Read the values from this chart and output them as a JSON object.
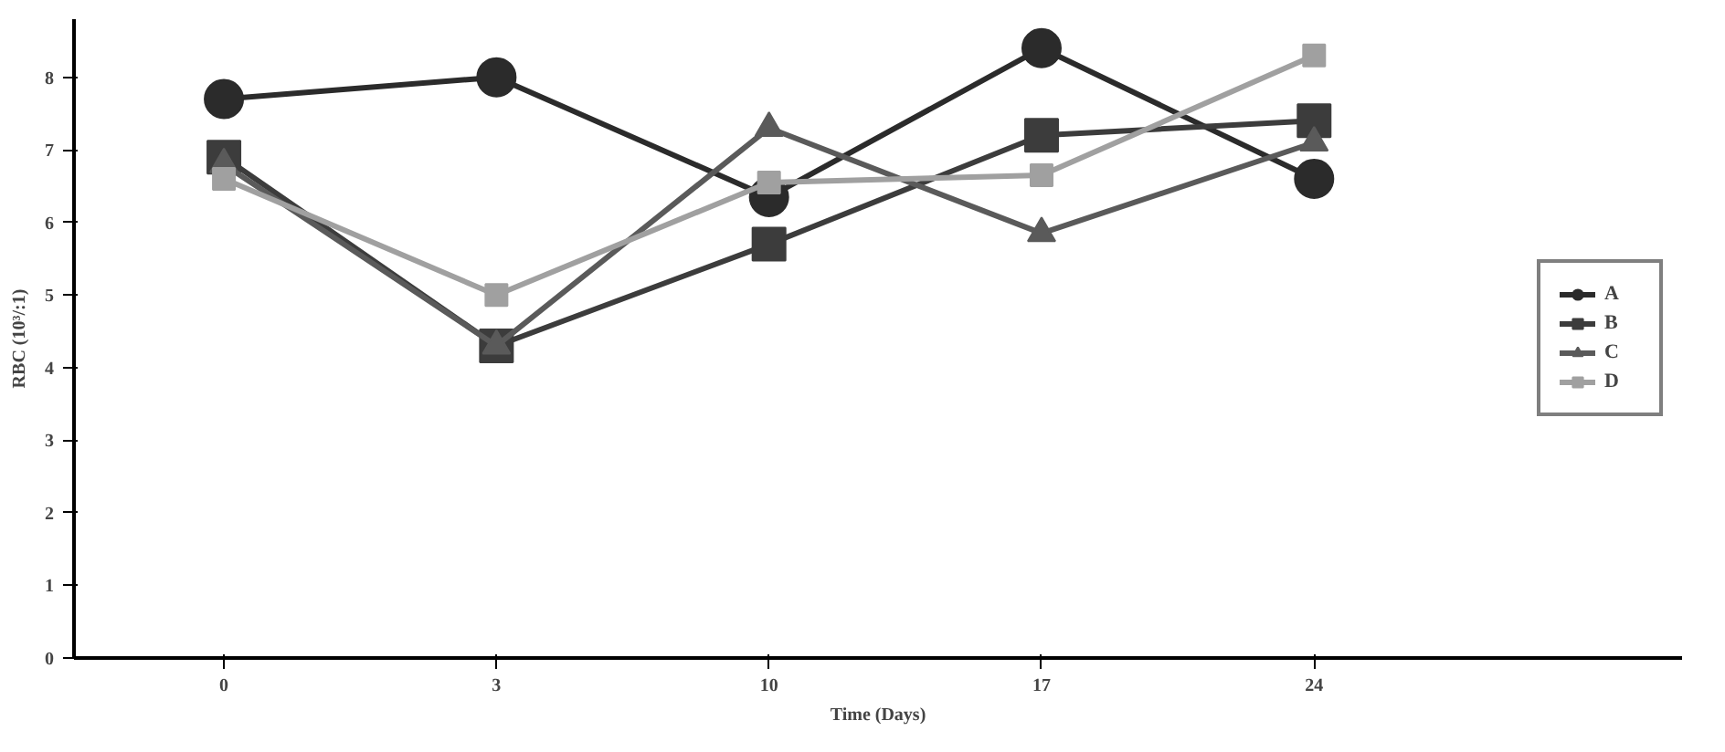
{
  "chart_data": {
    "type": "line",
    "xlabel": "Time (Days)",
    "ylabel": "RBC (10³/:1)",
    "categories": [
      "0",
      "3",
      "10",
      "17",
      "24"
    ],
    "series": [
      {
        "name": "A",
        "color": "#2b2b2b",
        "marker": "circle",
        "values": [
          7.7,
          8.0,
          6.35,
          8.4,
          6.6
        ]
      },
      {
        "name": "B",
        "color": "#3c3c3c",
        "marker": "square",
        "values": [
          6.9,
          4.3,
          5.7,
          7.2,
          7.4
        ]
      },
      {
        "name": "C",
        "color": "#5a5a5a",
        "marker": "triangle",
        "values": [
          6.8,
          4.3,
          7.3,
          5.85,
          7.1
        ]
      },
      {
        "name": "D",
        "color": "#a0a0a0",
        "marker": "square",
        "values": [
          6.6,
          5.0,
          6.55,
          6.65,
          8.3
        ]
      }
    ],
    "ylim": [
      0,
      8.8
    ],
    "yticks": [
      0,
      1,
      2,
      3,
      4,
      5,
      6,
      7,
      8
    ],
    "grid": false,
    "legend": "right"
  }
}
